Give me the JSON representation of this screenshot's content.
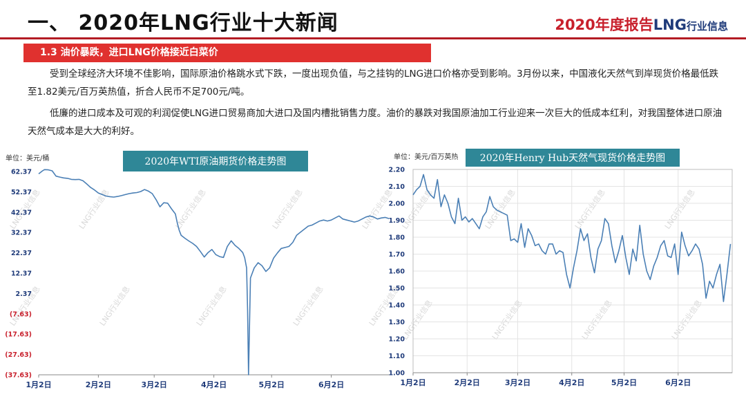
{
  "header": {
    "title": "一、 2020年LNG行业十大新闻",
    "brand_year": "2020年度报告",
    "brand_lng": "LNG",
    "brand_suffix": "行业信息"
  },
  "section": {
    "label": "1.3  油价暴跌，进口LNG价格接近白菜价"
  },
  "paragraphs": [
    "受到全球经济大环境不佳影响，国际原油价格跳水式下跌，一度出现负值，与之挂钩的LNG进口价格亦受到影响。3月份以来，中国液化天然气到岸现货价格最低跌至1.82美元/百万英热值，折合人民币不足700元/吨。",
    "低廉的进口成本及可观的利润促使LNG进口贸易商加大进口及国内槽批销售力度。油价的暴跌对我国原油加工行业迎来一次巨大的低成本红利，对我国整体进口原油天然气成本是大大的利好。"
  ],
  "watermark": "LNG行业信息",
  "colors": {
    "accent_red": "#e0312f",
    "title_box": "#2f8797",
    "line": "#4a7fb5",
    "negative_tick": "#c8202c",
    "tick": "#1f3b7a"
  },
  "chart_data": [
    {
      "type": "line",
      "title": "2020年WTI原油期货价格走势图",
      "unit_label": "单位：美元/桶",
      "y_ticks": [
        "62.37",
        "52.37",
        "42.37",
        "32.37",
        "22.37",
        "12.37",
        "2.37",
        "(7.63)",
        "(17.63)",
        "(27.63)",
        "(37.63)"
      ],
      "y_tick_values": [
        62.37,
        52.37,
        42.37,
        32.37,
        22.37,
        12.37,
        2.37,
        -7.63,
        -17.63,
        -27.63,
        -37.63
      ],
      "ylim": [
        -37.63,
        62.37
      ],
      "x_ticks": [
        "1月2日",
        "2月2日",
        "3月2日",
        "4月2日",
        "5月2日",
        "6月2日"
      ],
      "x_tick_days": [
        0,
        31,
        60,
        91,
        121,
        152
      ],
      "xlim": [
        0,
        183
      ],
      "series": [
        {
          "x": [
            0,
            2,
            3,
            5,
            7,
            9,
            11,
            13,
            15,
            17,
            19,
            21,
            23,
            25,
            27,
            29,
            31,
            33,
            35,
            37,
            39,
            41,
            43,
            45,
            47,
            49,
            51,
            53,
            55,
            57,
            59,
            61,
            63,
            65,
            67,
            69,
            71,
            72,
            73,
            74,
            76,
            78,
            80,
            82,
            84,
            86,
            88,
            90,
            92,
            94,
            96,
            98,
            100,
            102,
            104,
            106,
            107,
            108,
            108.5,
            109,
            110,
            112,
            114,
            116,
            118,
            120,
            122,
            124,
            126,
            128,
            130,
            132,
            134,
            136,
            138,
            140,
            142,
            144,
            146,
            148,
            150,
            152,
            154,
            156,
            158,
            160,
            162,
            164,
            166,
            168,
            170,
            172,
            174,
            176,
            178,
            180,
            182
          ],
          "y": [
            61.2,
            62.7,
            63.3,
            63.2,
            62.7,
            60.1,
            59.6,
            59.2,
            59.0,
            58.5,
            58.4,
            58.5,
            57.8,
            56.2,
            54.5,
            53.3,
            51.8,
            51.0,
            50.3,
            50.0,
            49.8,
            50.1,
            50.5,
            51.0,
            51.5,
            51.8,
            52.0,
            52.5,
            53.5,
            52.7,
            51.5,
            48.5,
            45.0,
            47.0,
            46.8,
            44.0,
            41.5,
            37.0,
            33.5,
            31.0,
            29.5,
            28.2,
            27.0,
            25.5,
            23.0,
            20.3,
            22.5,
            24.0,
            21.5,
            20.5,
            20.1,
            25.5,
            28.3,
            26.0,
            24.5,
            22.5,
            20.0,
            15.0,
            -5.0,
            -37.63,
            10.0,
            15.0,
            17.5,
            16.0,
            13.2,
            15.0,
            19.7,
            22.3,
            24.5,
            25.0,
            25.5,
            27.5,
            31.0,
            32.5,
            34.0,
            35.5,
            36.0,
            37.0,
            38.0,
            38.5,
            38.0,
            38.5,
            39.5,
            40.5,
            39.0,
            38.5,
            38.0,
            37.5,
            38.0,
            39.0,
            40.0,
            40.5,
            40.0,
            39.0,
            39.5,
            39.8,
            39.2
          ]
        }
      ]
    },
    {
      "type": "line",
      "title": "2020年Henry Hub天然气现货价格走势图",
      "unit_label": "单位：美元/百万英热",
      "y_ticks": [
        "2.20",
        "2.10",
        "2.00",
        "1.90",
        "1.80",
        "1.70",
        "1.60",
        "1.50",
        "1.40",
        "1.30",
        "1.20",
        "1.10",
        "1.00"
      ],
      "y_tick_values": [
        2.2,
        2.1,
        2.0,
        1.9,
        1.8,
        1.7,
        1.6,
        1.5,
        1.4,
        1.3,
        1.2,
        1.1,
        1.0
      ],
      "ylim": [
        1.0,
        2.2
      ],
      "x_ticks": [
        "1月2日",
        "2月2日",
        "3月2日",
        "4月2日",
        "5月2日",
        "6月2日"
      ],
      "x_tick_days": [
        0,
        31,
        60,
        91,
        121,
        152
      ],
      "xlim": [
        0,
        183
      ],
      "series": [
        {
          "x": [
            0,
            2,
            4,
            6,
            8,
            10,
            12,
            14,
            16,
            18,
            20,
            22,
            24,
            26,
            28,
            30,
            32,
            34,
            36,
            38,
            40,
            42,
            44,
            46,
            48,
            50,
            52,
            54,
            56,
            58,
            60,
            62,
            64,
            66,
            68,
            70,
            72,
            74,
            76,
            78,
            80,
            82,
            84,
            86,
            88,
            90,
            92,
            94,
            96,
            98,
            100,
            102,
            104,
            106,
            108,
            110,
            112,
            114,
            116,
            118,
            120,
            122,
            124,
            126,
            128,
            130,
            132,
            134,
            136,
            138,
            140,
            142,
            144,
            146,
            148,
            150,
            152,
            154,
            156,
            158,
            160,
            162,
            164,
            166,
            168,
            170,
            172,
            174,
            176,
            178,
            180,
            182
          ],
          "y": [
            2.05,
            2.08,
            2.1,
            2.17,
            2.08,
            2.05,
            2.03,
            2.14,
            1.98,
            2.05,
            2.0,
            1.92,
            1.88,
            2.03,
            1.9,
            1.92,
            1.89,
            1.91,
            1.88,
            1.85,
            1.92,
            1.95,
            2.04,
            1.98,
            1.96,
            1.95,
            1.94,
            1.93,
            1.78,
            1.79,
            1.77,
            1.88,
            1.74,
            1.85,
            1.81,
            1.75,
            1.76,
            1.72,
            1.7,
            1.76,
            1.76,
            1.7,
            1.72,
            1.71,
            1.58,
            1.5,
            1.62,
            1.72,
            1.85,
            1.78,
            1.82,
            1.68,
            1.59,
            1.73,
            1.78,
            1.91,
            1.88,
            1.75,
            1.65,
            1.72,
            1.81,
            1.68,
            1.58,
            1.73,
            1.66,
            1.87,
            1.7,
            1.6,
            1.55,
            1.63,
            1.68,
            1.75,
            1.78,
            1.69,
            1.68,
            1.76,
            1.58,
            1.83,
            1.75,
            1.69,
            1.72,
            1.76,
            1.73,
            1.64,
            1.44,
            1.54,
            1.5,
            1.58,
            1.64,
            1.42,
            1.58,
            1.76
          ]
        }
      ]
    }
  ]
}
